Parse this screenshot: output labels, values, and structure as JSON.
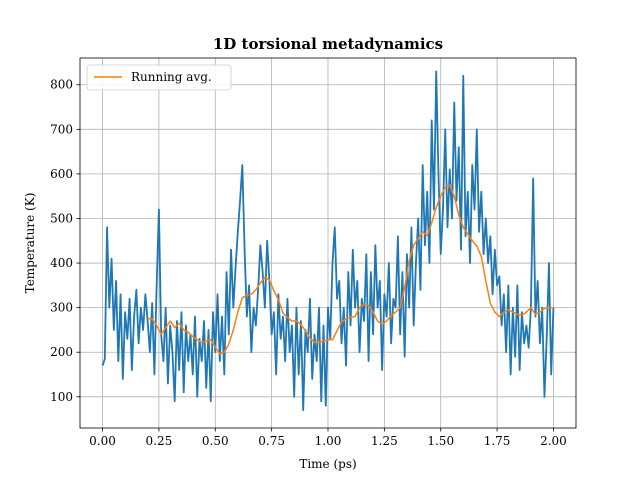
{
  "chart_data": {
    "type": "line",
    "title": "1D torsional  metadynamics",
    "xlabel": "Time (ps)",
    "ylabel": "Temperature (K)",
    "xlim": [
      -0.1,
      2.1
    ],
    "ylim": [
      30,
      860
    ],
    "x_ticks": [
      0.0,
      0.25,
      0.5,
      0.75,
      1.0,
      1.25,
      1.5,
      1.75,
      2.0
    ],
    "x_tick_labels": [
      "0.00",
      "0.25",
      "0.50",
      "0.75",
      "1.00",
      "1.25",
      "1.50",
      "1.75",
      "2.00"
    ],
    "y_ticks": [
      100,
      200,
      300,
      400,
      500,
      600,
      700,
      800
    ],
    "y_tick_labels": [
      "100",
      "200",
      "300",
      "400",
      "500",
      "600",
      "700",
      "800"
    ],
    "grid": true,
    "legend_position": "top-left",
    "series": [
      {
        "role": "temperature",
        "color": "#1f77b4",
        "x": [
          0.0,
          0.01,
          0.02,
          0.03,
          0.04,
          0.05,
          0.06,
          0.07,
          0.08,
          0.09,
          0.1,
          0.11,
          0.12,
          0.13,
          0.14,
          0.15,
          0.16,
          0.17,
          0.18,
          0.19,
          0.2,
          0.21,
          0.22,
          0.23,
          0.24,
          0.25,
          0.26,
          0.27,
          0.28,
          0.29,
          0.3,
          0.31,
          0.32,
          0.33,
          0.34,
          0.35,
          0.36,
          0.37,
          0.38,
          0.39,
          0.4,
          0.41,
          0.42,
          0.43,
          0.44,
          0.45,
          0.46,
          0.47,
          0.48,
          0.49,
          0.5,
          0.51,
          0.52,
          0.53,
          0.54,
          0.55,
          0.56,
          0.57,
          0.58,
          0.59,
          0.6,
          0.61,
          0.62,
          0.63,
          0.64,
          0.65,
          0.66,
          0.67,
          0.68,
          0.69,
          0.7,
          0.71,
          0.72,
          0.73,
          0.74,
          0.75,
          0.76,
          0.77,
          0.78,
          0.79,
          0.8,
          0.81,
          0.82,
          0.83,
          0.84,
          0.85,
          0.86,
          0.87,
          0.88,
          0.89,
          0.9,
          0.91,
          0.92,
          0.93,
          0.94,
          0.95,
          0.96,
          0.97,
          0.98,
          0.99,
          1.0,
          1.01,
          1.02,
          1.03,
          1.04,
          1.05,
          1.06,
          1.07,
          1.08,
          1.09,
          1.1,
          1.11,
          1.12,
          1.13,
          1.14,
          1.15,
          1.16,
          1.17,
          1.18,
          1.19,
          1.2,
          1.21,
          1.22,
          1.23,
          1.24,
          1.25,
          1.26,
          1.27,
          1.28,
          1.29,
          1.3,
          1.31,
          1.32,
          1.33,
          1.34,
          1.35,
          1.36,
          1.37,
          1.38,
          1.39,
          1.4,
          1.41,
          1.42,
          1.43,
          1.44,
          1.45,
          1.46,
          1.47,
          1.48,
          1.49,
          1.5,
          1.51,
          1.52,
          1.53,
          1.54,
          1.55,
          1.56,
          1.57,
          1.58,
          1.59,
          1.6,
          1.61,
          1.62,
          1.63,
          1.64,
          1.65,
          1.66,
          1.67,
          1.68,
          1.69,
          1.7,
          1.71,
          1.72,
          1.73,
          1.74,
          1.75,
          1.76,
          1.77,
          1.78,
          1.79,
          1.8,
          1.81,
          1.82,
          1.83,
          1.84,
          1.85,
          1.86,
          1.87,
          1.88,
          1.89,
          1.9,
          1.91,
          1.92,
          1.93,
          1.94,
          1.95,
          1.96,
          1.97,
          1.98,
          1.99,
          2.0
        ],
        "values": [
          170,
          185,
          480,
          300,
          410,
          250,
          360,
          180,
          330,
          140,
          290,
          230,
          320,
          160,
          280,
          340,
          220,
          300,
          250,
          330,
          270,
          200,
          310,
          150,
          350,
          520,
          240,
          180,
          300,
          130,
          260,
          200,
          90,
          270,
          160,
          290,
          110,
          260,
          180,
          240,
          150,
          280,
          100,
          230,
          180,
          270,
          120,
          250,
          90,
          290,
          200,
          330,
          180,
          280,
          150,
          380,
          240,
          430,
          300,
          390,
          470,
          540,
          620,
          430,
          280,
          350,
          200,
          300,
          260,
          340,
          440,
          380,
          300,
          450,
          360,
          240,
          290,
          150,
          330,
          230,
          280,
          180,
          320,
          200,
          260,
          100,
          300,
          150,
          270,
          70,
          250,
          200,
          320,
          140,
          240,
          180,
          300,
          90,
          260,
          80,
          300,
          230,
          400,
          480,
          320,
          360,
          220,
          300,
          170,
          380,
          260,
          430,
          300,
          360,
          200,
          320,
          270,
          420,
          180,
          380,
          240,
          440,
          300,
          360,
          160,
          330,
          280,
          400,
          220,
          320,
          300,
          460,
          240,
          380,
          190,
          420,
          300,
          480,
          260,
          400,
          500,
          340,
          620,
          440,
          560,
          400,
          720,
          520,
          830,
          600,
          420,
          520,
          700,
          480,
          610,
          500,
          760,
          540,
          660,
          430,
          820,
          460,
          560,
          400,
          620,
          520,
          700,
          470,
          560,
          420,
          500,
          400,
          460,
          330,
          430,
          350,
          370,
          260,
          330,
          200,
          350,
          150,
          300,
          190,
          350,
          160,
          290,
          220,
          260,
          210,
          300,
          590,
          280,
          360,
          220,
          300,
          100,
          230,
          400,
          150,
          300
        ],
        "x_start": 0.0,
        "x_end": 2.0
      },
      {
        "name": "Running avg.",
        "role": "running-average",
        "color": "#ff7f0e",
        "x": [
          0.2,
          0.22,
          0.24,
          0.26,
          0.28,
          0.3,
          0.32,
          0.34,
          0.36,
          0.38,
          0.4,
          0.42,
          0.44,
          0.46,
          0.48,
          0.5,
          0.52,
          0.54,
          0.56,
          0.58,
          0.6,
          0.62,
          0.64,
          0.66,
          0.68,
          0.7,
          0.72,
          0.74,
          0.76,
          0.78,
          0.8,
          0.82,
          0.84,
          0.86,
          0.88,
          0.9,
          0.92,
          0.94,
          0.96,
          0.98,
          1.0,
          1.02,
          1.04,
          1.06,
          1.08,
          1.1,
          1.12,
          1.14,
          1.16,
          1.18,
          1.2,
          1.22,
          1.24,
          1.26,
          1.28,
          1.3,
          1.32,
          1.34,
          1.36,
          1.38,
          1.4,
          1.42,
          1.44,
          1.46,
          1.48,
          1.5,
          1.52,
          1.54,
          1.56,
          1.58,
          1.6,
          1.62,
          1.64,
          1.66,
          1.68,
          1.7,
          1.72,
          1.74,
          1.76,
          1.78,
          1.8,
          1.82,
          1.84,
          1.86,
          1.88,
          1.9,
          1.92,
          1.94,
          1.96,
          1.98,
          2.0
        ],
        "values": [
          275,
          275,
          260,
          240,
          255,
          270,
          255,
          265,
          250,
          245,
          235,
          228,
          222,
          225,
          228,
          212,
          196,
          200,
          218,
          250,
          290,
          322,
          328,
          330,
          340,
          355,
          368,
          362,
          338,
          318,
          288,
          278,
          270,
          270,
          262,
          248,
          232,
          222,
          222,
          225,
          228,
          228,
          248,
          268,
          275,
          278,
          280,
          300,
          308,
          305,
          290,
          270,
          262,
          270,
          282,
          290,
          300,
          345,
          405,
          440,
          455,
          470,
          462,
          490,
          525,
          550,
          570,
          575,
          550,
          508,
          480,
          465,
          450,
          438,
          415,
          360,
          310,
          290,
          280,
          290,
          295,
          290,
          285,
          283,
          290,
          300,
          285,
          290,
          298,
          300,
          300
        ]
      }
    ]
  }
}
